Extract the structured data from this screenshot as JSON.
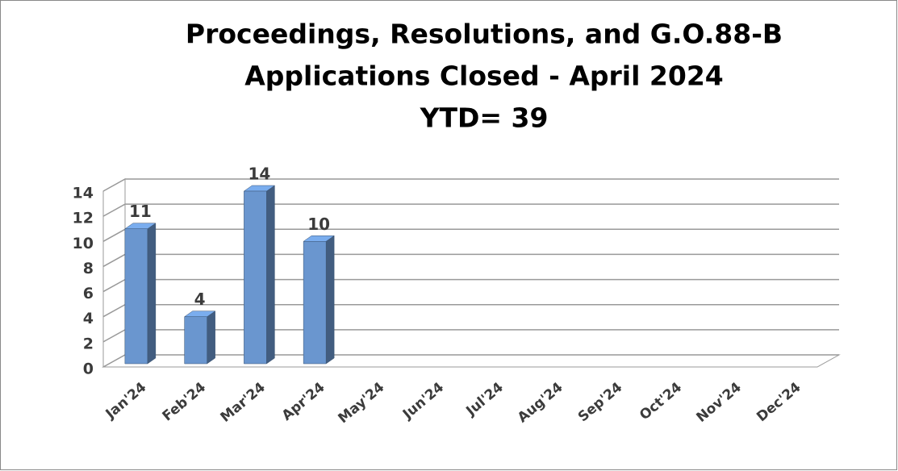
{
  "chart_data": {
    "type": "bar3d",
    "title": [
      "Proceedings, Resolutions, and G.O.88-B",
      "Applications Closed - April 2024",
      "YTD= 39"
    ],
    "categories": [
      "Jan'24",
      "Feb'24",
      "Mar'24",
      "Apr'24",
      "May'24",
      "Jun'24",
      "Jul'24",
      "Aug'24",
      "Sep'24",
      "Oct'24",
      "Nov'24",
      "Dec'24"
    ],
    "values": [
      11,
      4,
      14,
      10,
      null,
      null,
      null,
      null,
      null,
      null,
      null,
      null
    ],
    "color": "#6a96cf",
    "ylim": [
      0,
      14
    ],
    "yticks": [
      0,
      2,
      4,
      6,
      8,
      10,
      12,
      14
    ],
    "grid": true
  }
}
